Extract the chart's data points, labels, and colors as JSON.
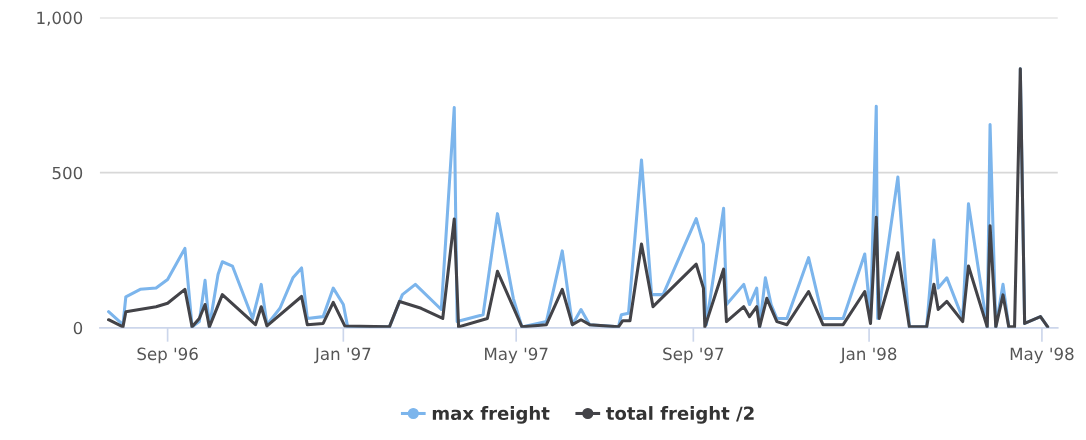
{
  "chart_data": {
    "type": "line",
    "xlim": [
      "1996-07-16",
      "1998-05-12"
    ],
    "xticks": [
      {
        "value": "1996-09-01",
        "label": "Sep '96"
      },
      {
        "value": "1997-01-01",
        "label": "Jan '97"
      },
      {
        "value": "1997-05-01",
        "label": "May '97"
      },
      {
        "value": "1997-09-01",
        "label": "Sep '97"
      },
      {
        "value": "1998-01-01",
        "label": "Jan '98"
      },
      {
        "value": "1998-05-01",
        "label": "May '98"
      }
    ],
    "ylim": [
      0,
      1000
    ],
    "yticks": [
      0,
      500,
      {
        "value": 1000,
        "label": "1,000"
      }
    ],
    "grid": "y",
    "legend": "bottom",
    "line_style": "solid",
    "series": [
      {
        "name": "max freight",
        "color": "#7cb5ec",
        "x": [
          "1996-07-22",
          "1996-08-01",
          "1996-08-03",
          "1996-08-13",
          "1996-08-24",
          "1996-09-01",
          "1996-09-13",
          "1996-09-18",
          "1996-09-23",
          "1996-09-27",
          "1996-09-30",
          "1996-10-06",
          "1996-10-09",
          "1996-10-16",
          "1996-10-30",
          "1996-11-05",
          "1996-11-09",
          "1996-11-18",
          "1996-11-27",
          "1996-12-03",
          "1996-12-07",
          "1996-12-18",
          "1996-12-25",
          "1997-01-01",
          "1997-01-04",
          "1997-02-02",
          "1997-02-11",
          "1997-02-20",
          "1997-03-10",
          "1997-03-19",
          "1997-03-21",
          "1997-04-08",
          "1997-04-18",
          "1997-04-29",
          "1997-05-05",
          "1997-05-22",
          "1997-06-02",
          "1997-06-09",
          "1997-06-15",
          "1997-06-21",
          "1997-07-11",
          "1997-07-13",
          "1997-07-18",
          "1997-07-27",
          "1997-08-03",
          "1997-08-11",
          "1997-09-03",
          "1997-09-08",
          "1997-09-10",
          "1997-09-22",
          "1997-09-24",
          "1997-10-06",
          "1997-10-10",
          "1997-10-15",
          "1997-10-17",
          "1997-10-21",
          "1997-10-25",
          "1997-10-29",
          "1997-11-05",
          "1997-11-20",
          "1997-11-30",
          "1997-12-14",
          "1997-12-29",
          "1998-01-02",
          "1998-01-06",
          "1998-01-07",
          "1998-01-21",
          "1998-01-26",
          "1998-01-29",
          "1998-02-10",
          "1998-02-15",
          "1998-02-18",
          "1998-02-24",
          "1998-03-07",
          "1998-03-11",
          "1998-03-24",
          "1998-03-26",
          "1998-03-30",
          "1998-04-04",
          "1998-04-08",
          "1998-04-12",
          "1998-04-16",
          "1998-04-19",
          "1998-04-30",
          "1998-05-05"
        ],
        "values": [
          52,
          10,
          100,
          124,
          128,
          156,
          256,
          3,
          20,
          153,
          3,
          172,
          213,
          199,
          30,
          140,
          10,
          63,
          161,
          193,
          30,
          36,
          128,
          75,
          3,
          3,
          107,
          140,
          59,
          710,
          20,
          42,
          368,
          95,
          3,
          20,
          248,
          10,
          59,
          10,
          3,
          42,
          47,
          541,
          107,
          107,
          352,
          270,
          10,
          385,
          75,
          140,
          75,
          128,
          3,
          161,
          75,
          30,
          30,
          226,
          30,
          30,
          238,
          30,
          714,
          30,
          486,
          172,
          3,
          3,
          283,
          128,
          161,
          30,
          400,
          3,
          655,
          3,
          140,
          3,
          null,
          835,
          14,
          36,
          3
        ]
      },
      {
        "name": "total freight /2",
        "color": "#434348",
        "x": [
          "1996-07-22",
          "1996-08-01",
          "1996-08-03",
          "1996-08-24",
          "1996-09-01",
          "1996-09-13",
          "1996-09-18",
          "1996-09-23",
          "1996-09-27",
          "1996-09-30",
          "1996-10-09",
          "1996-11-01",
          "1996-11-05",
          "1996-11-09",
          "1996-12-03",
          "1996-12-07",
          "1996-12-18",
          "1996-12-25",
          "1997-01-02",
          "1997-02-02",
          "1997-02-09",
          "1997-02-24",
          "1997-03-11",
          "1997-03-19",
          "1997-03-22",
          "1997-04-11",
          "1997-04-18",
          "1997-05-05",
          "1997-05-22",
          "1997-06-02",
          "1997-06-09",
          "1997-06-15",
          "1997-06-21",
          "1997-07-11",
          "1997-07-14",
          "1997-07-19",
          "1997-07-27",
          "1997-08-04",
          "1997-09-03",
          "1997-09-08",
          "1997-09-09",
          "1997-09-22",
          "1997-09-24",
          "1997-10-06",
          "1997-10-10",
          "1997-10-15",
          "1997-10-17",
          "1997-10-22",
          "1997-10-29",
          "1997-11-05",
          "1997-11-20",
          "1997-11-30",
          "1997-12-14",
          "1997-12-29",
          "1998-01-02",
          "1998-01-06",
          "1998-01-08",
          "1998-01-21",
          "1998-01-26",
          "1998-01-29",
          "1998-02-10",
          "1998-02-15",
          "1998-02-18",
          "1998-02-24",
          "1998-03-07",
          "1998-03-11",
          "1998-03-24",
          "1998-03-26",
          "1998-03-30",
          "1998-04-04",
          "1998-04-08",
          "1998-04-12",
          "1998-04-16",
          "1998-04-19",
          "1998-04-30",
          "1998-05-05"
        ],
        "values": [
          26,
          3,
          52,
          68,
          79,
          124,
          3,
          30,
          75,
          3,
          107,
          10,
          68,
          6,
          101,
          10,
          14,
          82,
          6,
          3,
          85,
          63,
          30,
          351,
          3,
          30,
          182,
          3,
          10,
          124,
          10,
          26,
          10,
          3,
          23,
          23,
          270,
          68,
          205,
          128,
          3,
          189,
          20,
          68,
          36,
          68,
          3,
          95,
          20,
          10,
          117,
          10,
          10,
          117,
          14,
          356,
          30,
          242,
          91,
          3,
          3,
          140,
          59,
          85,
          20,
          199,
          3,
          329,
          3,
          106,
          3,
          3,
          835,
          14,
          36,
          3
        ]
      }
    ]
  }
}
